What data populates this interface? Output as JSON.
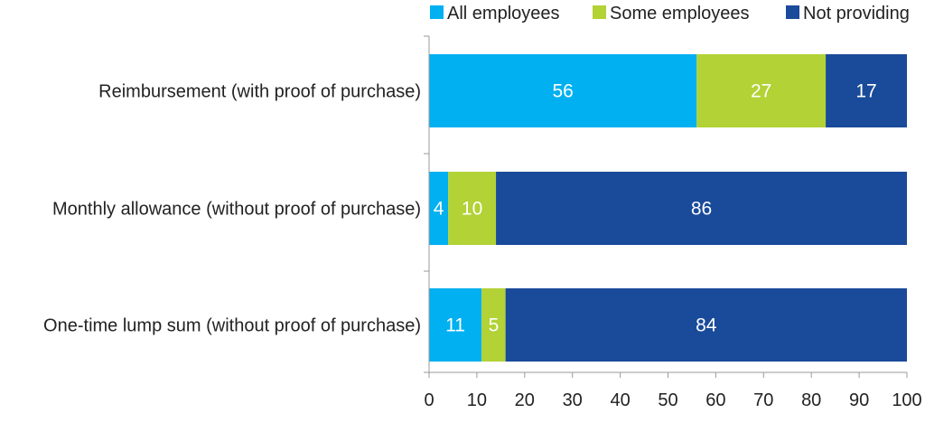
{
  "chart_data": {
    "type": "bar",
    "orientation": "horizontal",
    "stacked": true,
    "categories": [
      "Reimbursement (with proof of purchase)",
      "Monthly allowance (without proof of purchase)",
      "One-time lump sum (without proof of purchase)"
    ],
    "series": [
      {
        "name": "All employees",
        "values": [
          56,
          4,
          11
        ],
        "color": "#00b0f0"
      },
      {
        "name": "Some employees",
        "values": [
          27,
          10,
          5
        ],
        "color": "#b2d235"
      },
      {
        "name": "Not providing",
        "values": [
          17,
          86,
          84
        ],
        "color": "#1a4a9a"
      }
    ],
    "xlim": [
      0,
      100
    ],
    "xticks": [
      "0",
      "10",
      "20",
      "30",
      "40",
      "50",
      "60",
      "70",
      "80",
      "90",
      "100"
    ],
    "title": "",
    "xlabel": "",
    "ylabel": "",
    "grid": false,
    "data_labels": true,
    "legend_position": "top-right"
  }
}
